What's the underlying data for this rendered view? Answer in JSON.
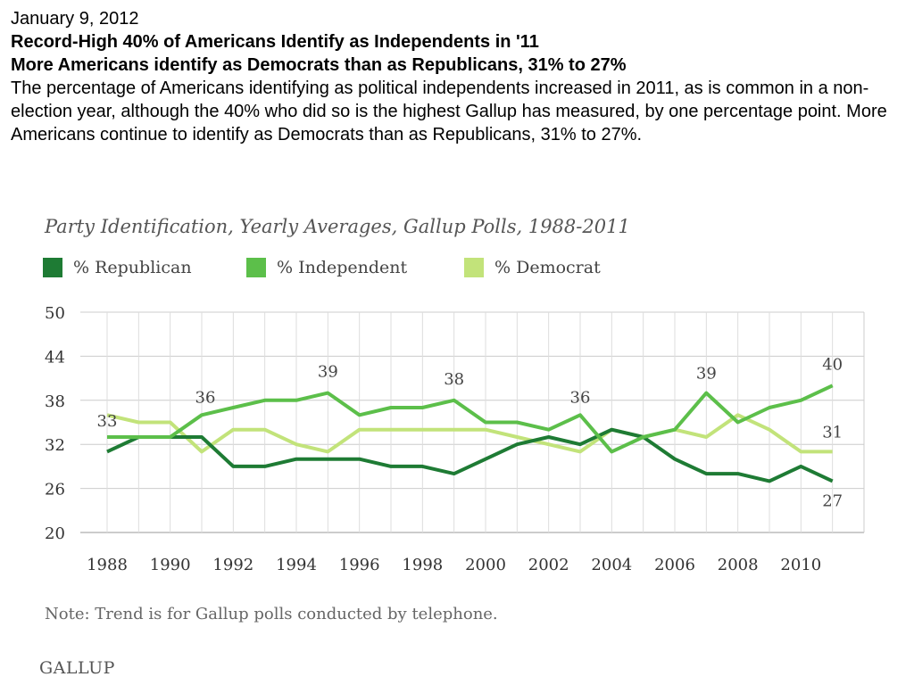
{
  "header": {
    "date": "January 9, 2012",
    "headline": "Record-High 40% of Americans Identify as Independents in '11",
    "subheadline": "More Americans identify as Democrats than as Republicans, 31% to 27%",
    "body": "The percentage of Americans identifying as political independents increased in 2011, as is common in a non-election year, although the 40% who did so is the highest Gallup has measured, by one percentage point. More Americans continue to identify as Democrats than as Republicans, 31% to 27%."
  },
  "chart_data": {
    "type": "line",
    "title": "Party Identification, Yearly Averages, Gallup Polls, 1988-2011",
    "xlabel": "",
    "ylabel": "",
    "x": [
      1988,
      1989,
      1990,
      1991,
      1992,
      1993,
      1994,
      1995,
      1996,
      1997,
      1998,
      1999,
      2000,
      2001,
      2002,
      2003,
      2004,
      2005,
      2006,
      2007,
      2008,
      2009,
      2010,
      2011
    ],
    "x_ticks": [
      1988,
      1990,
      1992,
      1994,
      1996,
      1998,
      2000,
      2002,
      2004,
      2006,
      2008,
      2010
    ],
    "y_ticks": [
      20,
      26,
      32,
      38,
      44,
      50
    ],
    "ylim": [
      20,
      50
    ],
    "grid": true,
    "legend_position": "top-left",
    "series": [
      {
        "name": "% Republican",
        "color": "#1e7b34",
        "values": [
          31,
          33,
          33,
          33,
          29,
          29,
          30,
          30,
          30,
          29,
          29,
          28,
          30,
          32,
          33,
          32,
          34,
          33,
          30,
          28,
          28,
          27,
          29,
          27
        ]
      },
      {
        "name": "% Independent",
        "color": "#5cbf4a",
        "values": [
          33,
          33,
          33,
          36,
          37,
          38,
          38,
          39,
          36,
          37,
          37,
          38,
          35,
          35,
          34,
          36,
          31,
          33,
          34,
          39,
          35,
          37,
          38,
          40
        ]
      },
      {
        "name": "% Democrat",
        "color": "#c2e37a",
        "values": [
          36,
          35,
          35,
          31,
          34,
          34,
          32,
          31,
          34,
          34,
          34,
          34,
          34,
          33,
          32,
          31,
          34,
          33,
          34,
          33,
          36,
          34,
          31,
          31
        ]
      }
    ],
    "annotations": [
      {
        "text": "33",
        "x": 1988,
        "y": 33
      },
      {
        "text": "36",
        "x": 1991,
        "y": 36
      },
      {
        "text": "39",
        "x": 1995,
        "y": 39
      },
      {
        "text": "38",
        "x": 1999,
        "y": 38
      },
      {
        "text": "36",
        "x": 2003,
        "y": 36
      },
      {
        "text": "39",
        "x": 2007,
        "y": 39
      },
      {
        "text": "40",
        "x": 2011,
        "y": 40
      },
      {
        "text": "31",
        "x": 2011,
        "y": 31
      },
      {
        "text": "27",
        "x": 2011,
        "y": 27
      }
    ],
    "note": "Note: Trend is for Gallup polls conducted by telephone."
  },
  "branding": {
    "logo_text": "GALLUP"
  }
}
